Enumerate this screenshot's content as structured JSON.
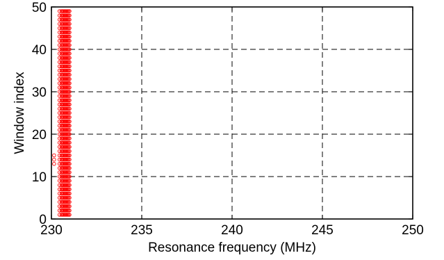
{
  "chart_data": {
    "type": "scatter",
    "title": "",
    "xlabel": "Resonance frequency (MHz)",
    "ylabel": "Window index",
    "xlim": [
      230,
      250
    ],
    "ylim": [
      0,
      50
    ],
    "xticks": [
      230,
      235,
      240,
      245,
      250
    ],
    "yticks": [
      0,
      10,
      20,
      30,
      40,
      50
    ],
    "xtick_labels": [
      "230",
      "235",
      "240",
      "245",
      "250"
    ],
    "ytick_labels": [
      "0",
      "10",
      "20",
      "30",
      "40",
      "50"
    ],
    "grid": "dashed",
    "grid_color": "#000000",
    "marker": "open-circle",
    "marker_color": "#ff0000",
    "series": [
      {
        "x": [
          230.15,
          230.15,
          230.15
        ],
        "y": [
          13,
          14,
          15
        ]
      },
      {
        "x": [
          230.45,
          230.55,
          230.65,
          230.75,
          230.85,
          230.95
        ],
        "y": [
          0,
          0,
          0,
          0,
          0,
          0
        ],
        "y_from": 1,
        "y_to": 49,
        "note_style": "column"
      },
      {
        "x": [
          230.6,
          230.7,
          230.8,
          230.9,
          231.0
        ],
        "y": [
          0,
          0,
          0,
          0,
          0
        ],
        "y_from": 1,
        "y_to": 49,
        "note_style": "column"
      }
    ]
  }
}
